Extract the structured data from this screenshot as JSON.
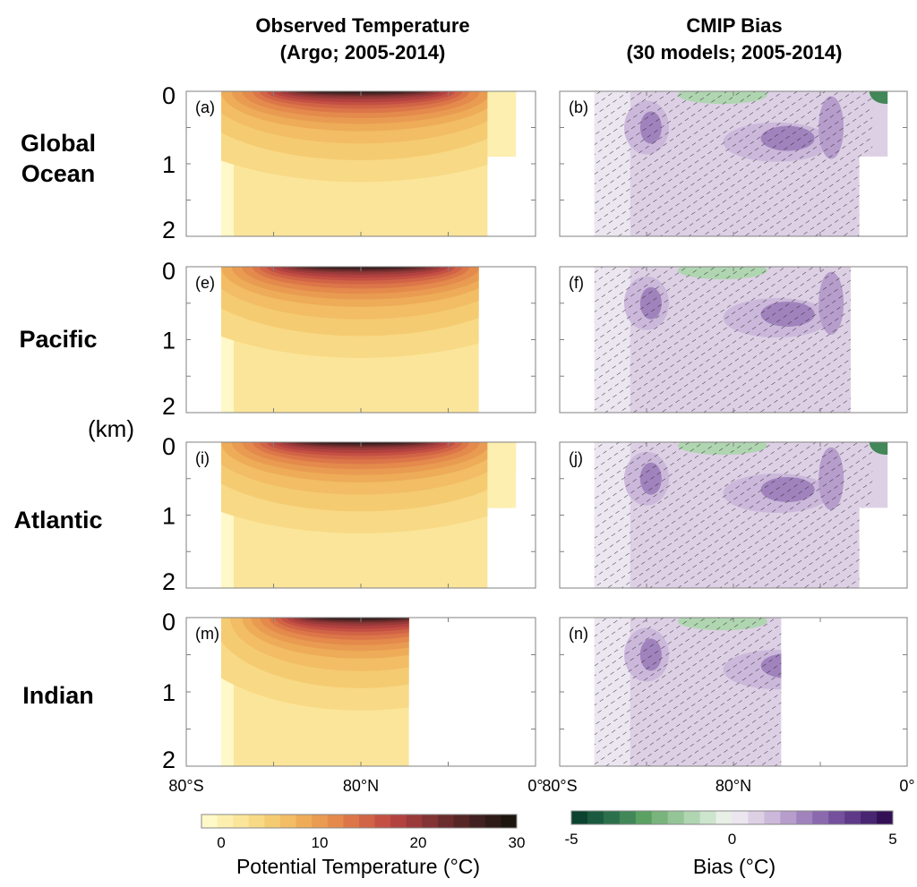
{
  "columns": [
    {
      "title_line1": "Observed Temperature",
      "title_line2": "(Argo; 2005-2014)"
    },
    {
      "title_line1": "CMIP Bias",
      "title_line2": "(30 models; 2005-2014)"
    }
  ],
  "rows": [
    {
      "label_line1": "Global",
      "label_line2": "Ocean"
    },
    {
      "label_line1": "Pacific",
      "label_line2": ""
    },
    {
      "label_line1": "Atlantic",
      "label_line2": ""
    },
    {
      "label_line1": "Indian",
      "label_line2": ""
    }
  ],
  "depth_unit_label": "(km)",
  "chart_data": {
    "type": "heatmap",
    "x_axis": {
      "range": [
        -80,
        80
      ],
      "ticks": [
        -80,
        -40,
        0,
        40,
        80
      ],
      "tick_labels": [
        "80°S",
        "0°",
        "80°N"
      ]
    },
    "y_axis": {
      "range": [
        0,
        2
      ],
      "reversed": true,
      "ticks": [
        0,
        0.5,
        1,
        1.5,
        2
      ],
      "tick_labels": [
        "0",
        "1",
        "2"
      ],
      "label": "(km)"
    },
    "panels": [
      {
        "id": "(a)",
        "basin": "Global Ocean",
        "field": "temperature",
        "lat_extent": [
          -64,
          71
        ]
      },
      {
        "id": "(b)",
        "basin": "Global Ocean",
        "field": "bias",
        "lat_extent": [
          -64,
          71
        ],
        "hatching": true
      },
      {
        "id": "(e)",
        "basin": "Pacific",
        "field": "temperature",
        "lat_extent": [
          -64,
          54
        ]
      },
      {
        "id": "(f)",
        "basin": "Pacific",
        "field": "bias",
        "lat_extent": [
          -64,
          54
        ],
        "hatching": true
      },
      {
        "id": "(i)",
        "basin": "Atlantic",
        "field": "temperature",
        "lat_extent": [
          -64,
          71
        ]
      },
      {
        "id": "(j)",
        "basin": "Atlantic",
        "field": "bias",
        "lat_extent": [
          -64,
          71
        ],
        "hatching": true
      },
      {
        "id": "(m)",
        "basin": "Indian",
        "field": "temperature",
        "lat_extent": [
          -64,
          22
        ]
      },
      {
        "id": "(n)",
        "basin": "Indian",
        "field": "bias",
        "lat_extent": [
          -64,
          22
        ],
        "hatching": true
      }
    ],
    "colorbars": [
      {
        "label": "Potential Temperature (°C)",
        "range": [
          -2,
          30
        ],
        "ticks": [
          0,
          10,
          20,
          30
        ],
        "tick_labels": [
          "0",
          "10",
          "20",
          "30"
        ],
        "colors": [
          "#fff8c8",
          "#fdefb0",
          "#fbe59a",
          "#f8d985",
          "#f5cb72",
          "#f2bd64",
          "#eeac58",
          "#e99c51",
          "#e48a4c",
          "#dc7649",
          "#d16346",
          "#c44f43",
          "#b24240",
          "#9a3a3a",
          "#823333",
          "#6a2c2c",
          "#552626",
          "#412021",
          "#2e1b18",
          "#1c160f"
        ]
      },
      {
        "label": "Bias (°C)",
        "range": [
          -5,
          5
        ],
        "ticks": [
          -5,
          0,
          5
        ],
        "tick_labels": [
          "-5",
          "0",
          "5"
        ],
        "colors": [
          "#0b4230",
          "#1b5a3e",
          "#2c704b",
          "#418757",
          "#5aa162",
          "#78b47b",
          "#95c596",
          "#b0d5b1",
          "#cde5cc",
          "#e8f0e6",
          "#ece6f0",
          "#ddd0e5",
          "#cbb8da",
          "#b69dcb",
          "#a083bd",
          "#8b69ae",
          "#75509c",
          "#5f3a88",
          "#482570",
          "#330f55"
        ]
      }
    ]
  },
  "colors": {
    "frame": "#808080",
    "hatch": "#222222"
  }
}
